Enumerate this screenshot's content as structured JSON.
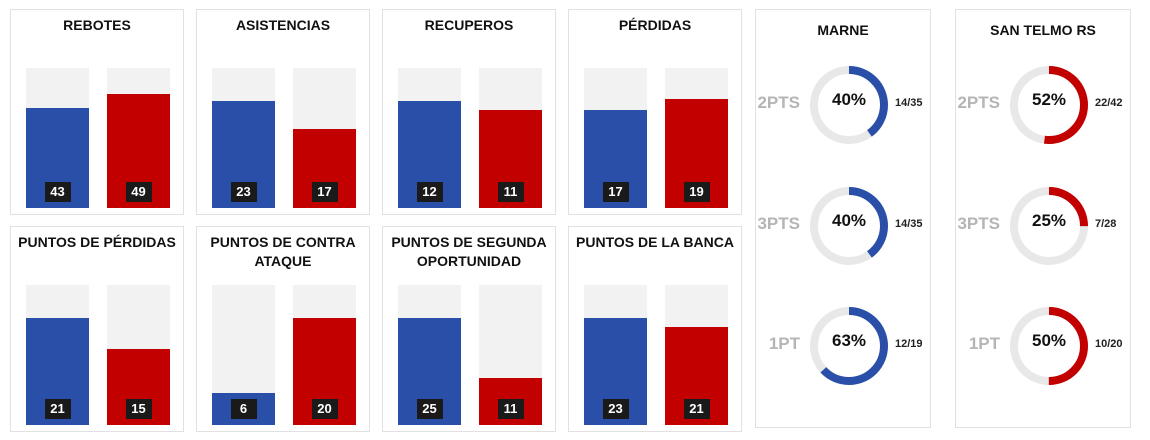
{
  "colors": {
    "team_a": "#2a4fa8",
    "team_b": "#c20000",
    "track": "#f2f2f2",
    "ring_track": "#e8e8e8"
  },
  "chart_data": [
    {
      "type": "bar",
      "title": "REBOTES",
      "categories": [
        "MARNE",
        "SAN TELMO RS"
      ],
      "values": [
        43,
        49
      ],
      "ylim": [
        0,
        60
      ]
    },
    {
      "type": "bar",
      "title": "ASISTENCIAS",
      "categories": [
        "MARNE",
        "SAN TELMO RS"
      ],
      "values": [
        23,
        17
      ],
      "ylim": [
        0,
        30
      ]
    },
    {
      "type": "bar",
      "title": "RECUPEROS",
      "categories": [
        "MARNE",
        "SAN TELMO RS"
      ],
      "values": [
        12,
        11
      ],
      "ylim": [
        0,
        15.7
      ]
    },
    {
      "type": "bar",
      "title": "PÉRDIDAS",
      "categories": [
        "MARNE",
        "SAN TELMO RS"
      ],
      "values": [
        17,
        19
      ],
      "ylim": [
        0,
        24.3
      ]
    },
    {
      "type": "bar",
      "title": "PUNTOS DE PÉRDIDAS",
      "categories": [
        "MARNE",
        "SAN TELMO RS"
      ],
      "values": [
        21,
        15
      ],
      "ylim": [
        0,
        27.5
      ]
    },
    {
      "type": "bar",
      "title": "PUNTOS DE CONTRA ATAQUE",
      "categories": [
        "MARNE",
        "SAN TELMO RS"
      ],
      "values": [
        6,
        20
      ],
      "ylim": [
        0,
        26.2
      ]
    },
    {
      "type": "bar",
      "title": "PUNTOS DE SEGUNDA OPORTUNIDAD",
      "categories": [
        "MARNE",
        "SAN TELMO RS"
      ],
      "values": [
        25,
        11
      ],
      "ylim": [
        0,
        32.8
      ]
    },
    {
      "type": "bar",
      "title": "PUNTOS DE LA BANCA",
      "categories": [
        "MARNE",
        "SAN TELMO RS"
      ],
      "values": [
        23,
        21
      ],
      "ylim": [
        0,
        30.1
      ]
    },
    {
      "type": "pie",
      "title": "MARNE",
      "rows": [
        {
          "label": "2PTS",
          "pct": 40,
          "pct_text": "40%",
          "frac": "14/35"
        },
        {
          "label": "3PTS",
          "pct": 40,
          "pct_text": "40%",
          "frac": "14/35"
        },
        {
          "label": "1PT",
          "pct": 63,
          "pct_text": "63%",
          "frac": "12/19"
        }
      ]
    },
    {
      "type": "pie",
      "title": "SAN TELMO RS",
      "rows": [
        {
          "label": "2PTS",
          "pct": 52,
          "pct_text": "52%",
          "frac": "22/42"
        },
        {
          "label": "3PTS",
          "pct": 25,
          "pct_text": "25%",
          "frac": "7/28"
        },
        {
          "label": "1PT",
          "pct": 50,
          "pct_text": "50%",
          "frac": "10/20"
        }
      ]
    }
  ]
}
